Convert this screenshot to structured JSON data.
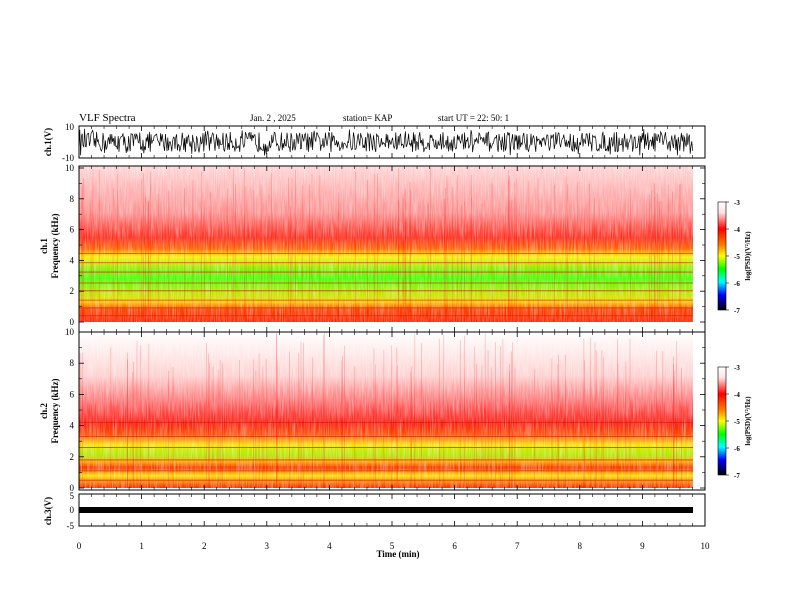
{
  "header": {
    "title": "VLF Spectra",
    "date": "Jan. 2 , 2025",
    "station": "station= KAP",
    "start": "start UT = 22: 50: 1"
  },
  "colors": {
    "spectrogram_high": "#ff0000",
    "spectrogram_mid": "#ffff00",
    "spectrogram_low": "#00ff00",
    "colorbar": [
      "#ffffff",
      "#ff0000",
      "#ff8000",
      "#ffff00",
      "#00ff00",
      "#00ffff",
      "#0000ff",
      "#000080",
      "#000000"
    ]
  },
  "chart_data": [
    {
      "type": "line",
      "id": "ch1-waveform",
      "ylabel": "ch.1(V)",
      "ylim": [
        -10,
        10
      ],
      "yticks": [
        "10",
        "-10"
      ],
      "xlim": [
        0,
        10
      ],
      "description_visible": "black dense waveform spanning about -8 to 8 V"
    },
    {
      "type": "heatmap",
      "id": "ch1-spectrogram",
      "ylabel": "ch.1\nFrequency (kHz)",
      "ylim": [
        0,
        10
      ],
      "yticks": [
        "0",
        "2",
        "4",
        "6",
        "8",
        "10"
      ],
      "xlim": [
        0,
        9.8
      ],
      "colorbar": {
        "label": "log(PSD)(V²/Hz)",
        "range": [
          -7,
          -3
        ],
        "ticks": [
          "-3",
          "-4",
          "-5",
          "-6",
          "-7"
        ]
      }
    },
    {
      "type": "heatmap",
      "id": "ch2-spectrogram",
      "ylabel": "ch.2\nFrequency (kHz)",
      "ylim": [
        0,
        10
      ],
      "yticks": [
        "0",
        "2",
        "4",
        "6",
        "8",
        "10"
      ],
      "xlim": [
        0,
        9.8
      ],
      "colorbar": {
        "label": "log(PSD)(V²/Hz)",
        "range": [
          -7,
          -3
        ],
        "ticks": [
          "-3",
          "-4",
          "-5",
          "-6",
          "-7"
        ]
      }
    },
    {
      "type": "line",
      "id": "ch3-waveform",
      "ylabel": "ch.3(V)",
      "ylim": [
        -5,
        5
      ],
      "yticks": [
        "5",
        "0",
        "-5"
      ],
      "xlim": [
        0,
        10
      ]
    }
  ],
  "xaxis": {
    "label": "Time (min)",
    "ticks": [
      "0",
      "1",
      "2",
      "3",
      "4",
      "5",
      "6",
      "7",
      "8",
      "9",
      "10"
    ]
  }
}
